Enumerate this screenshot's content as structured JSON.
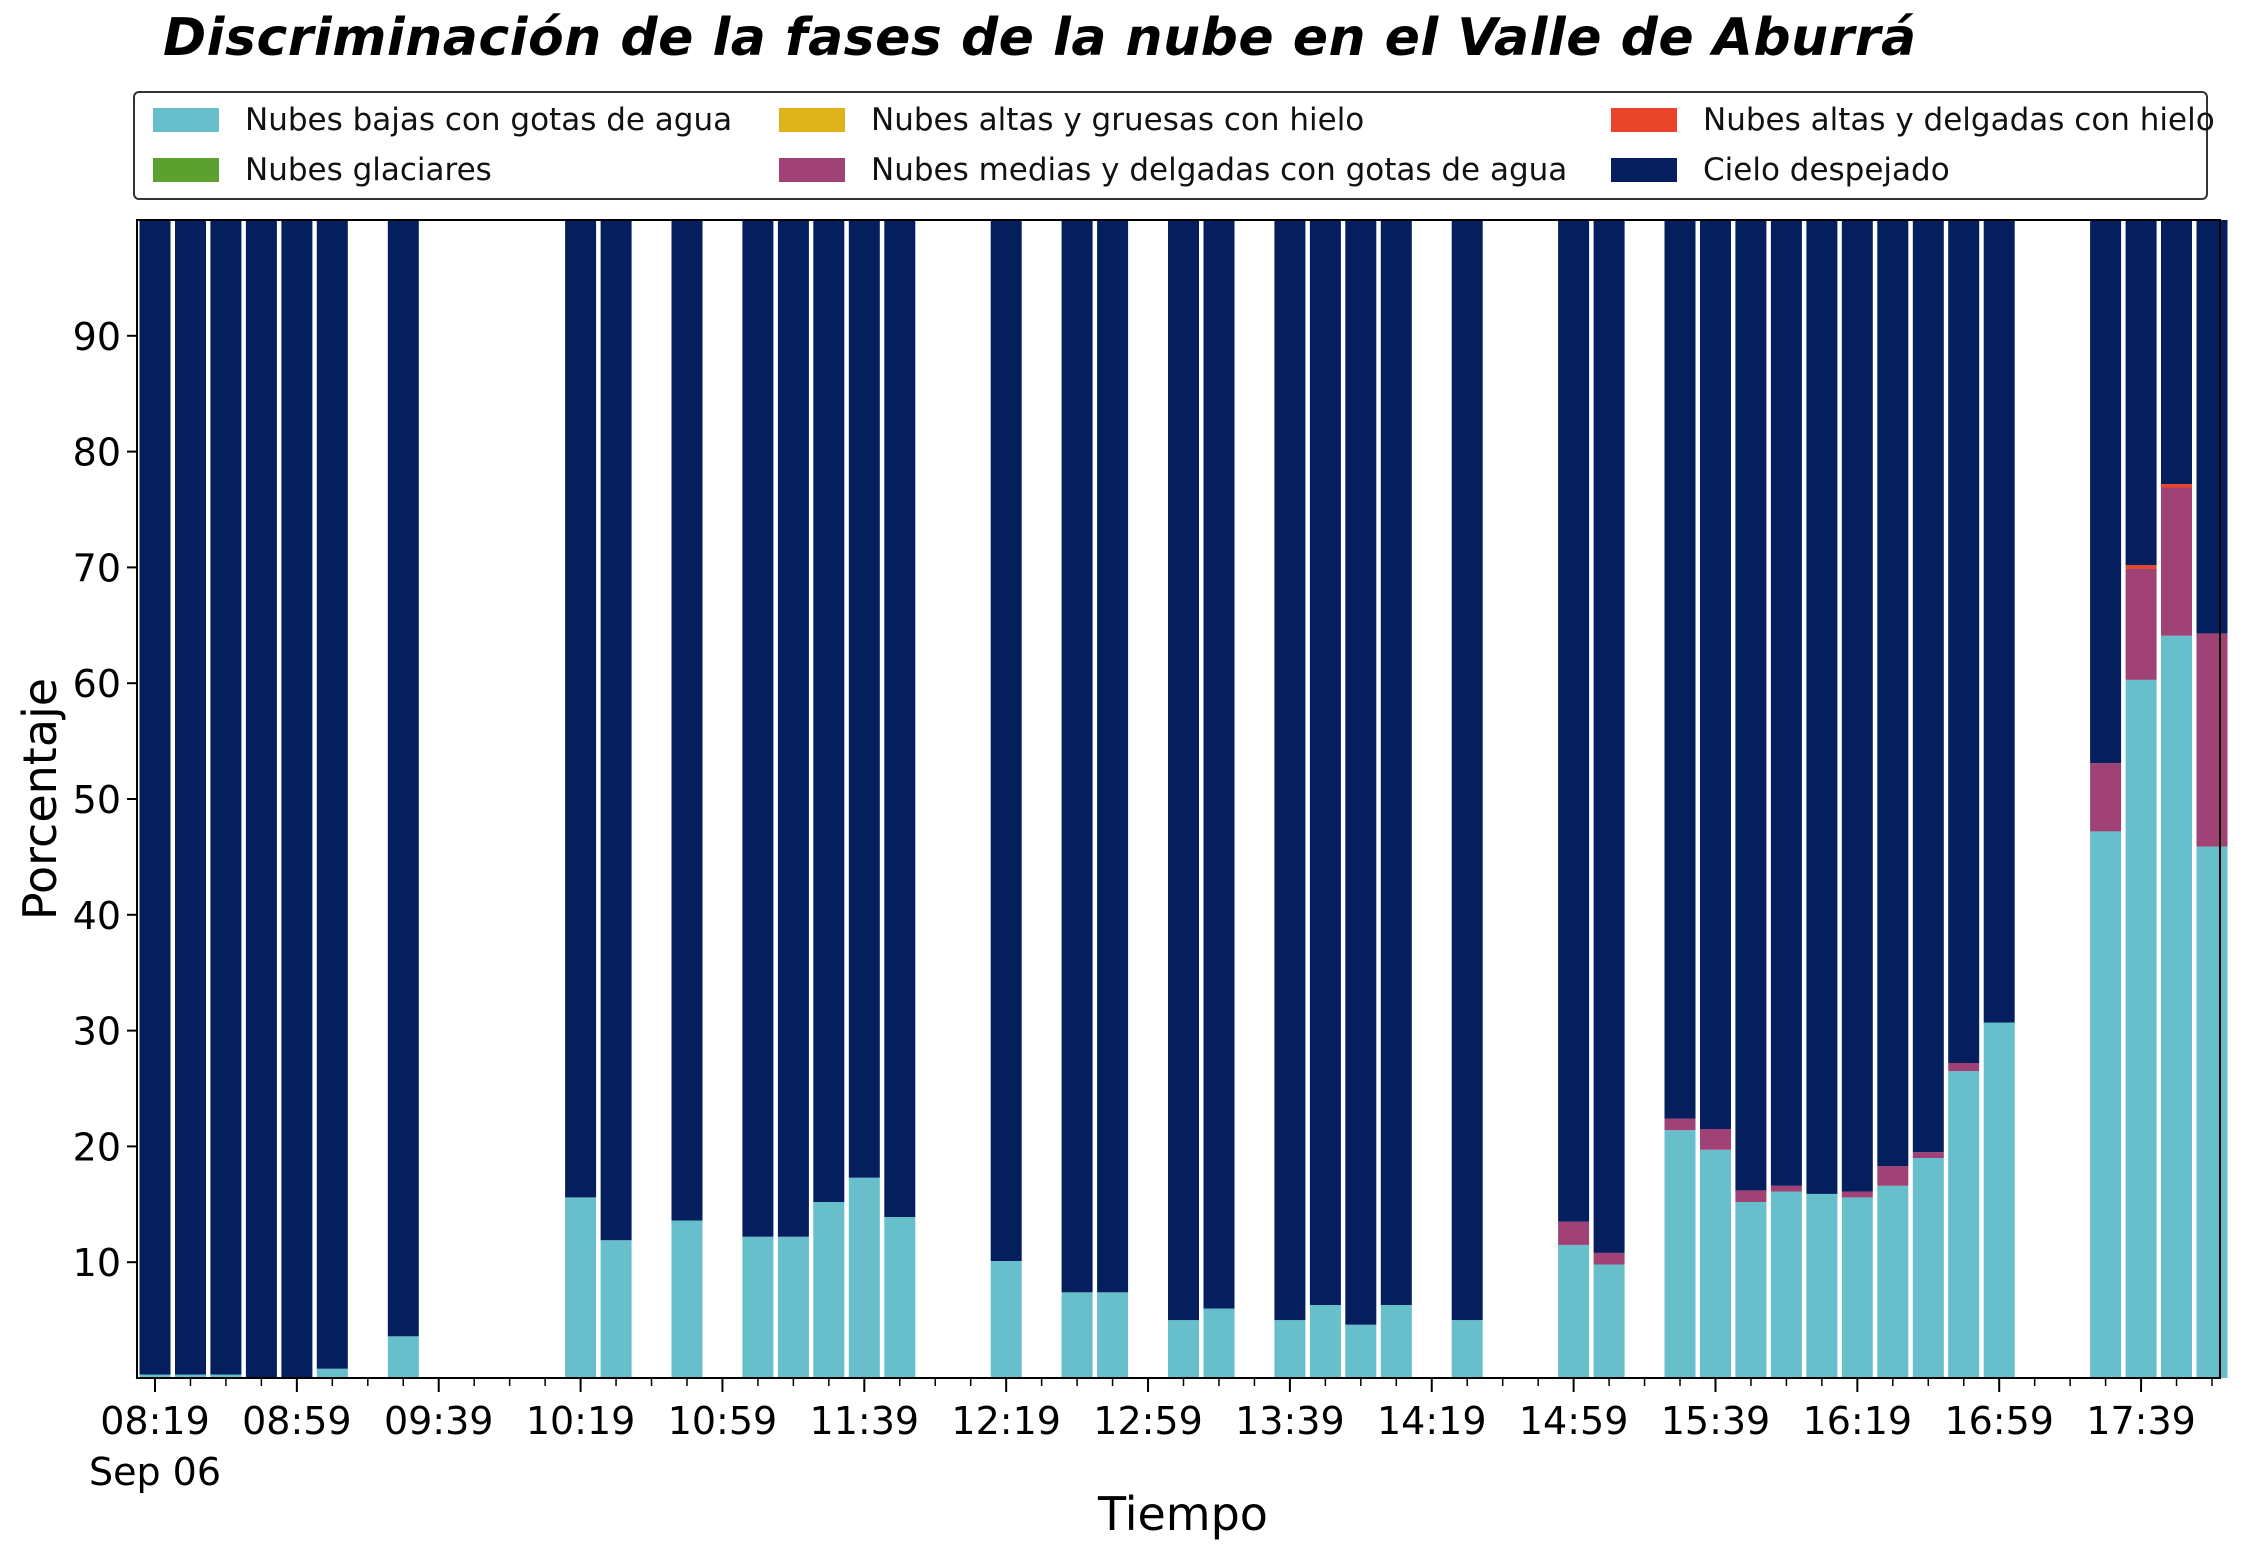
{
  "chart_data": {
    "type": "bar",
    "stacked": true,
    "title": "Discriminación de la fases de la nube en el Valle de Aburrá",
    "xlabel": "Tiempo",
    "ylabel": "Porcentaje",
    "ylim": [
      0,
      100
    ],
    "yticks": [
      10,
      20,
      30,
      40,
      50,
      60,
      70,
      80,
      90
    ],
    "xtick_labels": [
      "08:19",
      "08:59",
      "09:39",
      "10:19",
      "10:59",
      "11:39",
      "12:19",
      "12:59",
      "13:39",
      "14:19",
      "14:59",
      "15:39",
      "16:19",
      "16:59",
      "17:39"
    ],
    "xtick_sublabel": "Sep 06",
    "x_time_range": [
      "08:19",
      "18:09"
    ],
    "legend_position": "top",
    "grid": false,
    "categories": [
      "08:19",
      "08:29",
      "08:39",
      "08:49",
      "08:59",
      "09:09",
      "09:29",
      "10:19",
      "10:29",
      "10:49",
      "11:09",
      "11:19",
      "11:29",
      "11:39",
      "11:49",
      "12:19",
      "12:39",
      "12:49",
      "13:09",
      "13:19",
      "13:39",
      "13:49",
      "13:59",
      "14:09",
      "14:29",
      "14:59",
      "15:09",
      "15:29",
      "15:39",
      "15:49",
      "15:59",
      "16:09",
      "16:19",
      "16:29",
      "16:39",
      "16:49",
      "16:59",
      "17:29",
      "17:39",
      "17:49",
      "17:59"
    ],
    "series": [
      {
        "name": "Nubes bajas con gotas de agua",
        "color": "#66bfca",
        "values": [
          0.3,
          0.3,
          0.3,
          0,
          0,
          0.8,
          3.6,
          15.6,
          11.9,
          13.6,
          12.2,
          12.2,
          15.2,
          17.3,
          13.9,
          10.1,
          7.4,
          7.4,
          5,
          6,
          5,
          6.3,
          4.6,
          6.3,
          5,
          11.5,
          9.8,
          21.4,
          19.7,
          15.2,
          16.1,
          15.9,
          15.6,
          16.6,
          19,
          26.5,
          30.7,
          47.2,
          60.3,
          64.1,
          45.9
        ]
      },
      {
        "name": "Nubes glaciares",
        "color": "#5ca130",
        "values": [
          0,
          0,
          0,
          0,
          0,
          0,
          0,
          0,
          0,
          0,
          0,
          0,
          0,
          0,
          0,
          0,
          0,
          0,
          0,
          0,
          0,
          0,
          0,
          0,
          0,
          0,
          0,
          0,
          0,
          0,
          0,
          0,
          0,
          0,
          0,
          0,
          0,
          0,
          0,
          0,
          0
        ]
      },
      {
        "name": "Nubes altas y gruesas con hielo",
        "color": "#ddb21a",
        "values": [
          0,
          0,
          0,
          0,
          0,
          0,
          0,
          0,
          0,
          0,
          0,
          0,
          0,
          0,
          0,
          0,
          0,
          0,
          0,
          0,
          0,
          0,
          0,
          0,
          0,
          0,
          0,
          0,
          0,
          0,
          0,
          0,
          0,
          0,
          0,
          0,
          0,
          0,
          0,
          0,
          0
        ]
      },
      {
        "name": "Nubes medias y delgadas con gotas de agua",
        "color": "#a04275",
        "values": [
          0,
          0,
          0,
          0,
          0,
          0,
          0,
          0,
          0,
          0,
          0,
          0,
          0,
          0,
          0,
          0,
          0,
          0,
          0,
          0,
          0,
          0,
          0,
          0,
          0,
          2,
          1,
          1,
          1.8,
          1,
          0.5,
          0,
          0.5,
          1.7,
          0.5,
          0.7,
          0,
          5.9,
          9.6,
          12.8,
          18.4
        ]
      },
      {
        "name": "Nubes altas y delgadas con hielo",
        "color": "#e8452a",
        "values": [
          0,
          0,
          0,
          0,
          0,
          0,
          0,
          0,
          0,
          0,
          0,
          0,
          0,
          0,
          0,
          0,
          0,
          0,
          0,
          0,
          0,
          0,
          0,
          0,
          0,
          0,
          0,
          0,
          0,
          0,
          0,
          0,
          0,
          0,
          0,
          0,
          0,
          0,
          0.3,
          0.3,
          0
        ]
      },
      {
        "name": "Cielo despejado",
        "color": "#041e5e",
        "values": [
          99.7,
          99.7,
          99.7,
          100,
          100,
          99.2,
          96.4,
          84.4,
          88.1,
          86.4,
          87.8,
          87.8,
          84.8,
          82.7,
          86.1,
          89.9,
          92.6,
          92.6,
          95,
          94,
          95,
          93.7,
          95.4,
          93.7,
          95,
          86.5,
          89.2,
          77.6,
          78.5,
          83.8,
          83.4,
          84.1,
          83.9,
          81.7,
          80.5,
          72.8,
          69.3,
          46.9,
          29.8,
          22.8,
          35.7
        ]
      }
    ]
  }
}
